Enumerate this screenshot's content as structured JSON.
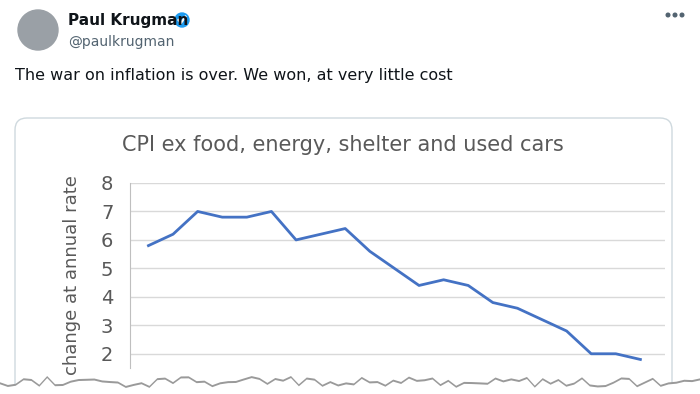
{
  "tweet": {
    "author": "Paul Krugman",
    "handle": "@paulkrugman",
    "text": "The war on inflation is over. We won, at very little cost"
  },
  "chart_data": {
    "type": "line",
    "title": "CPI ex food, energy, shelter and used cars",
    "y_label": "change at annual rate",
    "categories": [
      null,
      null,
      null,
      null,
      null,
      null,
      null,
      null,
      null,
      null,
      null,
      null,
      null,
      null,
      null,
      null,
      null,
      null,
      null,
      null,
      null
    ],
    "values": [
      5.8,
      6.2,
      7.0,
      6.8,
      6.8,
      7.0,
      6.0,
      6.2,
      6.4,
      5.6,
      5.0,
      4.4,
      4.6,
      4.4,
      3.8,
      3.6,
      3.2,
      2.8,
      2.0,
      2.0,
      1.8
    ],
    "color": "#4472c4",
    "ylim": [
      1.5,
      8
    ],
    "yticks": [
      2,
      3,
      4,
      5,
      6,
      7,
      8
    ],
    "grid": true,
    "tick_labels": "y"
  }
}
